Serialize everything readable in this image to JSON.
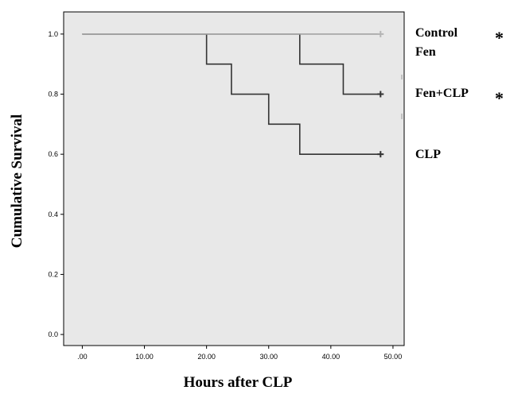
{
  "chart_data": {
    "type": "line",
    "subtype": "kaplan-meier step",
    "xlabel": "Hours after CLP",
    "ylabel": "Cumulative Survival",
    "xlim": [
      0,
      50
    ],
    "ylim": [
      0,
      1.0
    ],
    "x_ticks": [
      ".00",
      "10.00",
      "20.00",
      "30.00",
      "40.00",
      "50.00"
    ],
    "y_ticks": [
      "0.0",
      "0.2",
      "0.4",
      "0.6",
      "0.8",
      "1.0"
    ],
    "grid": false,
    "legend_position": "right",
    "series": [
      {
        "name": "Control",
        "annotation": "*",
        "color": "#b4b4b4",
        "steps": [
          [
            0,
            1.0
          ],
          [
            48,
            1.0
          ]
        ],
        "censored": [
          [
            48,
            1.0
          ]
        ]
      },
      {
        "name": "Fen",
        "color": "#333333",
        "steps": [
          [
            0,
            1.0
          ],
          [
            48,
            1.0
          ]
        ],
        "censored": []
      },
      {
        "name": "Fen+CLP",
        "annotation": "*",
        "color": "#333333",
        "steps": [
          [
            0,
            1.0
          ],
          [
            35,
            0.9
          ],
          [
            42,
            0.8
          ],
          [
            48,
            0.8
          ]
        ],
        "censored": [
          [
            48,
            0.8
          ]
        ]
      },
      {
        "name": "CLP",
        "color": "#333333",
        "steps": [
          [
            0,
            1.0
          ],
          [
            20,
            0.9
          ],
          [
            24,
            0.8
          ],
          [
            30,
            0.7
          ],
          [
            35,
            0.6
          ],
          [
            48,
            0.6
          ]
        ],
        "censored": [
          [
            48,
            0.6
          ]
        ]
      }
    ],
    "plot_background": "#e8e8e8"
  }
}
